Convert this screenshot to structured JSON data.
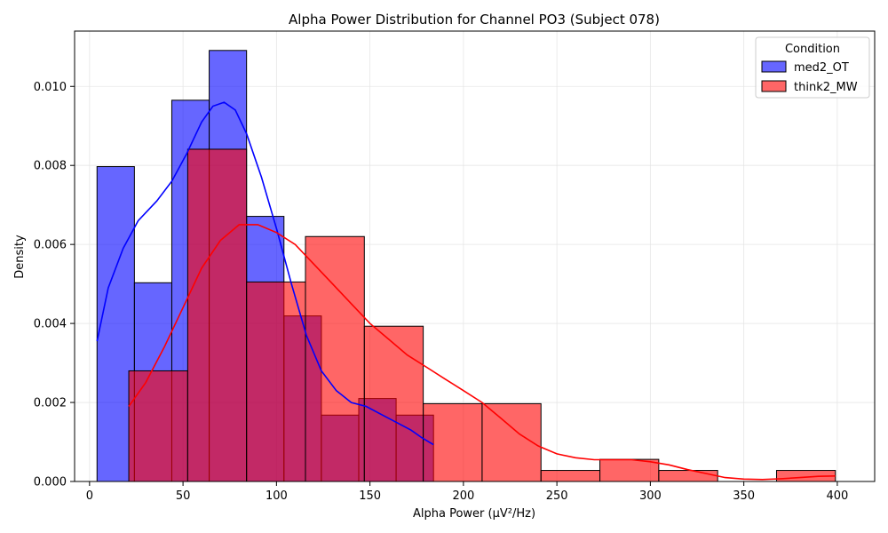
{
  "chart_data": {
    "type": "histogram",
    "title": "Alpha Power Distribution for Channel PO3 (Subject 078)",
    "xlabel": "Alpha Power (μV²/Hz)",
    "ylabel": "Density",
    "xlim": [
      -8,
      420
    ],
    "ylim": [
      0,
      0.0114
    ],
    "xticks": [
      0,
      50,
      100,
      150,
      200,
      250,
      300,
      350,
      400
    ],
    "yticks": [
      0.0,
      0.002,
      0.004,
      0.006,
      0.008,
      0.01
    ],
    "ytick_labels": [
      "0.000",
      "0.002",
      "0.004",
      "0.006",
      "0.008",
      "0.010"
    ],
    "grid": true,
    "legend": {
      "title": "Condition",
      "position": "top-right"
    },
    "series": [
      {
        "name": "med2_OT",
        "color": "#0000ff",
        "kde_color": "#0000ff",
        "bins": [
          {
            "x0": 4,
            "x1": 24,
            "density": 0.00797
          },
          {
            "x0": 24,
            "x1": 44,
            "density": 0.00503
          },
          {
            "x0": 44,
            "x1": 64,
            "density": 0.00965
          },
          {
            "x0": 64,
            "x1": 84,
            "density": 0.01091
          },
          {
            "x0": 84,
            "x1": 104,
            "density": 0.00671
          },
          {
            "x0": 104,
            "x1": 124,
            "density": 0.00419
          },
          {
            "x0": 124,
            "x1": 144,
            "density": 0.00168
          },
          {
            "x0": 144,
            "x1": 164,
            "density": 0.0021
          },
          {
            "x0": 164,
            "x1": 184,
            "density": 0.00168
          }
        ],
        "kde": [
          [
            4,
            0.00355
          ],
          [
            10,
            0.0049
          ],
          [
            18,
            0.0059
          ],
          [
            26,
            0.0066
          ],
          [
            36,
            0.0071
          ],
          [
            44,
            0.0076
          ],
          [
            52,
            0.0083
          ],
          [
            60,
            0.0091
          ],
          [
            66,
            0.0095
          ],
          [
            72,
            0.0096
          ],
          [
            78,
            0.0094
          ],
          [
            84,
            0.0088
          ],
          [
            92,
            0.0077
          ],
          [
            100,
            0.0064
          ],
          [
            108,
            0.005
          ],
          [
            116,
            0.0037
          ],
          [
            124,
            0.0028
          ],
          [
            132,
            0.0023
          ],
          [
            140,
            0.002
          ],
          [
            148,
            0.0019
          ],
          [
            156,
            0.0017
          ],
          [
            164,
            0.0015
          ],
          [
            172,
            0.0013
          ],
          [
            178,
            0.0011
          ],
          [
            184,
            0.00093
          ]
        ]
      },
      {
        "name": "think2_MW",
        "color": "#ff0000",
        "kde_color": "#ff0000",
        "bins": [
          {
            "x0": 21,
            "x1": 52.5,
            "density": 0.0028
          },
          {
            "x0": 52.5,
            "x1": 84,
            "density": 0.00841
          },
          {
            "x0": 84,
            "x1": 115.5,
            "density": 0.00505
          },
          {
            "x0": 115.5,
            "x1": 147,
            "density": 0.0062
          },
          {
            "x0": 147,
            "x1": 178.5,
            "density": 0.00393
          },
          {
            "x0": 178.5,
            "x1": 210,
            "density": 0.00197
          },
          {
            "x0": 210,
            "x1": 241.5,
            "density": 0.00197
          },
          {
            "x0": 241.5,
            "x1": 273,
            "density": 0.00028
          },
          {
            "x0": 273,
            "x1": 304.5,
            "density": 0.00056
          },
          {
            "x0": 304.5,
            "x1": 336,
            "density": 0.00028
          },
          {
            "x0": 336,
            "x1": 367.5,
            "density": 0.0
          },
          {
            "x0": 367.5,
            "x1": 399,
            "density": 0.00028
          }
        ],
        "kde": [
          [
            21,
            0.0019
          ],
          [
            30,
            0.0025
          ],
          [
            40,
            0.0034
          ],
          [
            50,
            0.0044
          ],
          [
            60,
            0.0054
          ],
          [
            70,
            0.0061
          ],
          [
            80,
            0.0065
          ],
          [
            90,
            0.0065
          ],
          [
            100,
            0.0063
          ],
          [
            110,
            0.006
          ],
          [
            120,
            0.0055
          ],
          [
            130,
            0.005
          ],
          [
            140,
            0.0045
          ],
          [
            150,
            0.004
          ],
          [
            160,
            0.0036
          ],
          [
            170,
            0.0032
          ],
          [
            180,
            0.0029
          ],
          [
            190,
            0.0026
          ],
          [
            200,
            0.0023
          ],
          [
            210,
            0.002
          ],
          [
            220,
            0.0016
          ],
          [
            230,
            0.0012
          ],
          [
            240,
            0.0009
          ],
          [
            250,
            0.0007
          ],
          [
            260,
            0.0006
          ],
          [
            270,
            0.00055
          ],
          [
            280,
            0.00055
          ],
          [
            290,
            0.00055
          ],
          [
            300,
            0.0005
          ],
          [
            310,
            0.00042
          ],
          [
            320,
            0.0003
          ],
          [
            330,
            0.0002
          ],
          [
            340,
            0.0001
          ],
          [
            350,
            6e-05
          ],
          [
            360,
            5e-05
          ],
          [
            370,
            7e-05
          ],
          [
            380,
            0.0001
          ],
          [
            390,
            0.00013
          ],
          [
            399,
            0.00014
          ]
        ]
      }
    ]
  }
}
